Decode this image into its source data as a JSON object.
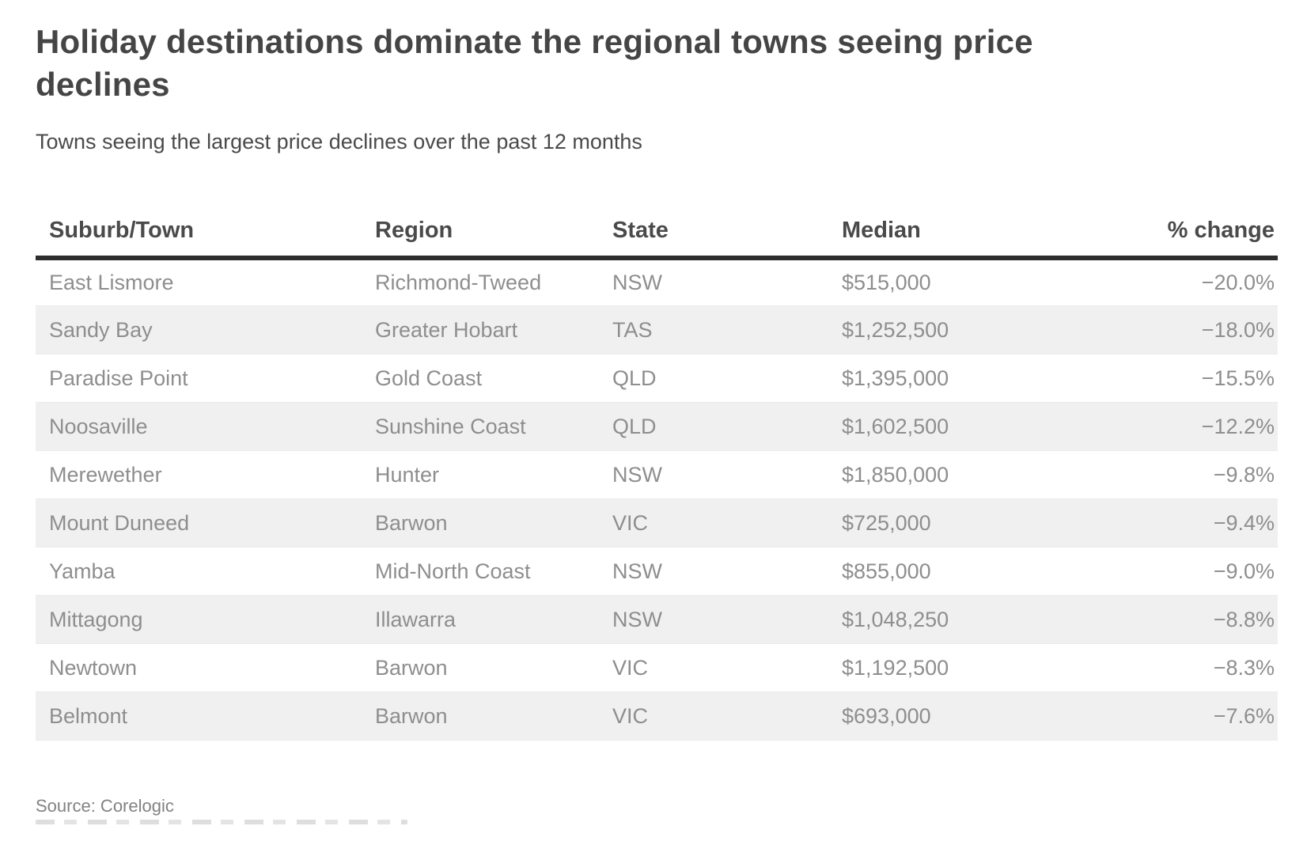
{
  "header": {
    "title": "Holiday destinations dominate the regional towns seeing price declines",
    "subtitle": "Towns seeing the largest price declines over the past 12 months"
  },
  "table": {
    "columns": [
      {
        "label": "Suburb/Town",
        "align": "left"
      },
      {
        "label": "Region",
        "align": "left"
      },
      {
        "label": "State",
        "align": "left"
      },
      {
        "label": "Median",
        "align": "left"
      },
      {
        "label": "% change",
        "align": "right"
      }
    ],
    "rows": [
      [
        "East Lismore",
        "Richmond-Tweed",
        "NSW",
        "$515,000",
        "−20.0%"
      ],
      [
        "Sandy Bay",
        "Greater Hobart",
        "TAS",
        "$1,252,500",
        "−18.0%"
      ],
      [
        "Paradise Point",
        "Gold Coast",
        "QLD",
        "$1,395,000",
        "−15.5%"
      ],
      [
        "Noosaville",
        "Sunshine Coast",
        "QLD",
        "$1,602,500",
        "−12.2%"
      ],
      [
        "Merewether",
        "Hunter",
        "NSW",
        "$1,850,000",
        "−9.8%"
      ],
      [
        "Mount Duneed",
        "Barwon",
        "VIC",
        "$725,000",
        "−9.4%"
      ],
      [
        "Yamba",
        "Mid-North Coast",
        "NSW",
        "$855,000",
        "−9.0%"
      ],
      [
        "Mittagong",
        "Illawarra",
        "NSW",
        "$1,048,250",
        "−8.8%"
      ],
      [
        "Newtown",
        "Barwon",
        "VIC",
        "$1,192,500",
        "−8.3%"
      ],
      [
        "Belmont",
        "Barwon",
        "VIC",
        "$693,000",
        "−7.6%"
      ]
    ]
  },
  "footer": {
    "source": "Source: Corelogic"
  },
  "colors": {
    "title_text": "#454545",
    "header_text": "#4a4a4a",
    "cell_text": "#8e8e8e",
    "header_rule": "#2e2e2e",
    "alt_row_bg": "#f0f0f0",
    "row_divider": "#ebebeb",
    "source_text": "#828282",
    "background": "#ffffff"
  },
  "chart_data": {
    "type": "table",
    "title": "Holiday destinations dominate the regional towns seeing price declines",
    "subtitle": "Towns seeing the largest price declines over the past 12 months",
    "columns": [
      "Suburb/Town",
      "Region",
      "State",
      "Median",
      "% change"
    ],
    "rows": [
      {
        "suburb_town": "East Lismore",
        "region": "Richmond-Tweed",
        "state": "NSW",
        "median": "$515,000",
        "median_value": 515000,
        "pct_change": -20.0
      },
      {
        "suburb_town": "Sandy Bay",
        "region": "Greater Hobart",
        "state": "TAS",
        "median": "$1,252,500",
        "median_value": 1252500,
        "pct_change": -18.0
      },
      {
        "suburb_town": "Paradise Point",
        "region": "Gold Coast",
        "state": "QLD",
        "median": "$1,395,000",
        "median_value": 1395000,
        "pct_change": -15.5
      },
      {
        "suburb_town": "Noosaville",
        "region": "Sunshine Coast",
        "state": "QLD",
        "median": "$1,602,500",
        "median_value": 1602500,
        "pct_change": -12.2
      },
      {
        "suburb_town": "Merewether",
        "region": "Hunter",
        "state": "NSW",
        "median": "$1,850,000",
        "median_value": 1850000,
        "pct_change": -9.8
      },
      {
        "suburb_town": "Mount Duneed",
        "region": "Barwon",
        "state": "VIC",
        "median": "$725,000",
        "median_value": 725000,
        "pct_change": -9.4
      },
      {
        "suburb_town": "Yamba",
        "region": "Mid-North Coast",
        "state": "NSW",
        "median": "$855,000",
        "median_value": 855000,
        "pct_change": -9.0
      },
      {
        "suburb_town": "Mittagong",
        "region": "Illawarra",
        "state": "NSW",
        "median": "$1,048,250",
        "median_value": 1048250,
        "pct_change": -8.8
      },
      {
        "suburb_town": "Newtown",
        "region": "Barwon",
        "state": "VIC",
        "median": "$1,192,500",
        "median_value": 1192500,
        "pct_change": -8.3
      },
      {
        "suburb_town": "Belmont",
        "region": "Barwon",
        "state": "VIC",
        "median": "$693,000",
        "median_value": 693000,
        "pct_change": -7.6
      }
    ],
    "source": "Source: Corelogic",
    "layout": {
      "striped_rows": true,
      "stripe_start_row": 2,
      "grid": "horizontal-only"
    }
  }
}
